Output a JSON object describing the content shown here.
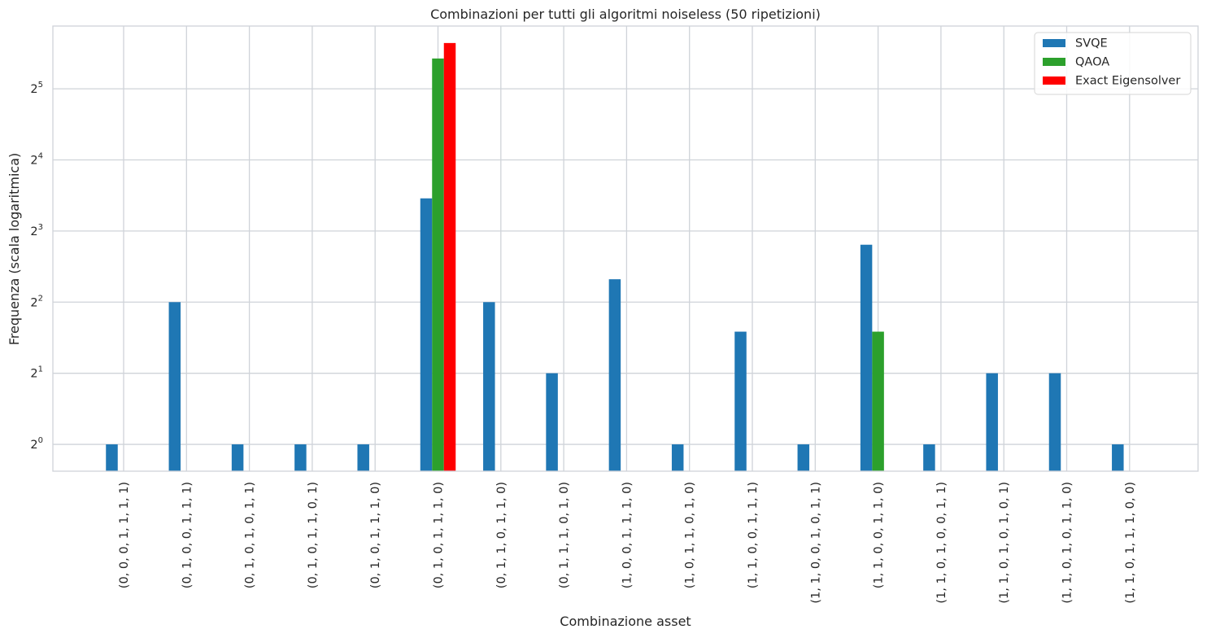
{
  "chart_data": {
    "type": "bar",
    "title": "Combinazioni per tutti gli algoritmi noiseless (50 ripetizioni)",
    "xlabel": "Combinazione asset",
    "ylabel": "Frequenza (scala logaritmica)",
    "yscale": "log2",
    "ylim": [
      0.77,
      59
    ],
    "grid": true,
    "legend_position": "top-right",
    "categories": [
      "(0, 0, 0, 1, 1, 1, 1)",
      "(0, 1, 0, 0, 1, 1, 1)",
      "(0, 1, 0, 1, 0, 1, 1)",
      "(0, 1, 0, 1, 1, 0, 1)",
      "(0, 1, 0, 1, 1, 1, 0)",
      "(0, 1, 0, 1, 1, 1, 0)",
      "(0, 1, 1, 0, 1, 1, 0)",
      "(0, 1, 1, 1, 0, 1, 0)",
      "(1, 0, 0, 1, 1, 1, 0)",
      "(1, 0, 1, 1, 0, 1, 0)",
      "(1, 1, 0, 0, 1, 1, 1)",
      "(1, 1, 0, 0, 1, 0, 1, 1)",
      "(1, 1, 0, 0, 1, 1, 0)",
      "(1, 1, 0, 1, 0, 0, 1, 1)",
      "(1, 1, 0, 1, 0, 1, 0, 1)",
      "(1, 1, 0, 1, 0, 1, 1, 0)",
      "(1, 1, 0, 1, 1, 1, 0, 0)"
    ],
    "yticks": [
      {
        "base": "2",
        "exp": "0",
        "value": 1
      },
      {
        "base": "2",
        "exp": "1",
        "value": 2
      },
      {
        "base": "2",
        "exp": "2",
        "value": 4
      },
      {
        "base": "2",
        "exp": "3",
        "value": 8
      },
      {
        "base": "2",
        "exp": "4",
        "value": 16
      },
      {
        "base": "2",
        "exp": "5",
        "value": 32
      }
    ],
    "series": [
      {
        "name": "SVQE",
        "color": "#1f77b4",
        "values": [
          1,
          4,
          1,
          1,
          1,
          11,
          4,
          2,
          5,
          1,
          3,
          1,
          7,
          1,
          2,
          2,
          1
        ]
      },
      {
        "name": "QAOA",
        "color": "#2ca02c",
        "values": [
          0,
          0,
          0,
          0,
          0,
          43,
          0,
          0,
          0,
          0,
          0,
          0,
          3,
          0,
          0,
          0,
          0
        ]
      },
      {
        "name": "Exact Eigensolver",
        "color": "#ff0000",
        "values": [
          0,
          0,
          0,
          0,
          0,
          50,
          0,
          0,
          0,
          0,
          0,
          0,
          0,
          0,
          0,
          0,
          0
        ]
      }
    ]
  }
}
